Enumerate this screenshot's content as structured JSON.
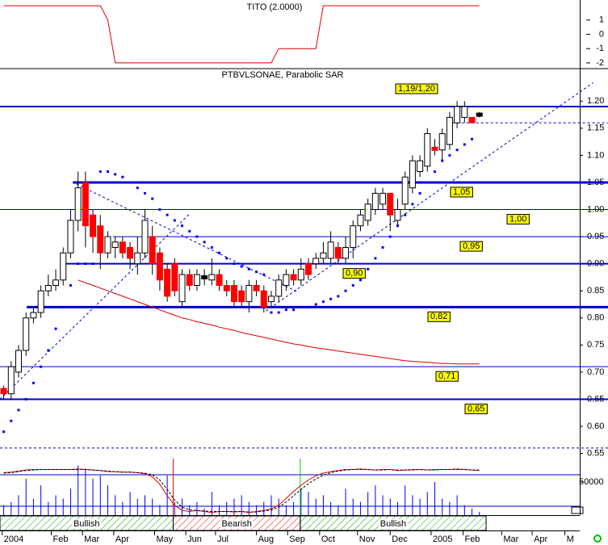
{
  "chart_data": [
    {
      "type": "line",
      "title": "TITO (2.0000)",
      "color": "#dd0000",
      "x": [
        0,
        1,
        2,
        3,
        4,
        5,
        6,
        7,
        8,
        9,
        10,
        11,
        12,
        13,
        14,
        15,
        16,
        17,
        18,
        19,
        20,
        21,
        22,
        23,
        24,
        25,
        26,
        27,
        28,
        29,
        30,
        31,
        32,
        33,
        34,
        35,
        36,
        37,
        38,
        39,
        40,
        41,
        42,
        43,
        44,
        45,
        46,
        47,
        48,
        49,
        50,
        51,
        52,
        53,
        54,
        55,
        56,
        57,
        58,
        59,
        60,
        61,
        62,
        63,
        64
      ],
      "values": [
        2,
        2,
        2,
        2,
        2,
        2,
        2,
        2,
        2,
        2,
        2,
        2,
        2,
        2,
        1,
        -2,
        -2,
        -2,
        -2,
        -2,
        -2,
        -2,
        -2,
        -2,
        -2,
        -2,
        -2,
        -2,
        -2,
        -2,
        -2,
        -2,
        -2,
        -2,
        -2,
        -2,
        -2,
        -1,
        -1,
        -1,
        -1,
        -1,
        -1,
        2,
        2,
        2,
        2,
        2,
        2,
        2,
        2,
        2,
        2,
        2,
        2,
        2,
        2,
        2,
        2,
        2,
        2,
        2,
        2,
        2,
        2
      ],
      "xlim": [
        -0.5,
        77.5
      ],
      "ylim": [
        -2.4,
        2.4
      ],
      "yticks": [
        1,
        0,
        -1,
        -2
      ]
    },
    {
      "type": "candlestick",
      "title": "PTBVLSONAE, Parabolic SAR",
      "up_color": "#ffffff",
      "down_color": "#ff0000",
      "doji_color": "#000000",
      "x": [
        0,
        1,
        2,
        3,
        4,
        5,
        6,
        7,
        8,
        9,
        10,
        11,
        12,
        13,
        14,
        15,
        16,
        17,
        18,
        19,
        20,
        21,
        22,
        23,
        24,
        25,
        26,
        27,
        28,
        29,
        30,
        31,
        32,
        33,
        34,
        35,
        36,
        37,
        38,
        39,
        40,
        41,
        42,
        43,
        44,
        45,
        46,
        47,
        48,
        49,
        50,
        51,
        52,
        53,
        54,
        55,
        56,
        57,
        58,
        59,
        60,
        61,
        62,
        63,
        64
      ],
      "open": [
        0.67,
        0.66,
        0.7,
        0.74,
        0.8,
        0.81,
        0.85,
        0.86,
        0.87,
        0.92,
        0.98,
        1.05,
        0.99,
        0.97,
        0.92,
        0.93,
        0.94,
        0.93,
        0.9,
        0.92,
        0.95,
        0.92,
        0.89,
        0.9,
        0.83,
        0.88,
        0.86,
        0.875,
        0.87,
        0.88,
        0.86,
        0.86,
        0.85,
        0.83,
        0.86,
        0.85,
        0.83,
        0.84,
        0.86,
        0.88,
        0.87,
        0.9,
        0.9,
        0.91,
        0.91,
        0.93,
        0.91,
        0.93,
        0.97,
        0.98,
        1.0,
        1.01,
        1.03,
        0.98,
        1.01,
        1.04,
        1.07,
        1.08,
        1.115,
        1.11,
        1.12,
        1.16,
        1.17,
        1.17,
        1.175
      ],
      "high": [
        0.675,
        0.72,
        0.75,
        0.81,
        0.82,
        0.86,
        0.88,
        0.89,
        0.93,
        1.0,
        1.07,
        1.07,
        1.0,
        0.99,
        0.96,
        0.95,
        0.95,
        0.94,
        0.95,
        1.0,
        0.97,
        0.93,
        0.9,
        0.91,
        0.89,
        0.89,
        0.89,
        0.89,
        0.91,
        0.89,
        0.87,
        0.87,
        0.86,
        0.87,
        0.87,
        0.86,
        0.85,
        0.88,
        0.89,
        0.89,
        0.91,
        0.91,
        0.92,
        0.94,
        0.96,
        0.94,
        0.95,
        0.98,
        1.0,
        1.02,
        1.04,
        1.04,
        1.03,
        1.02,
        1.07,
        1.1,
        1.1,
        1.15,
        1.13,
        1.15,
        1.18,
        1.2,
        1.2,
        1.17,
        1.18
      ],
      "low": [
        0.65,
        0.65,
        0.69,
        0.73,
        0.79,
        0.8,
        0.84,
        0.85,
        0.86,
        0.91,
        0.96,
        0.93,
        0.92,
        0.89,
        0.91,
        0.91,
        0.91,
        0.89,
        0.88,
        0.91,
        0.88,
        0.85,
        0.83,
        0.84,
        0.82,
        0.85,
        0.85,
        0.86,
        0.86,
        0.85,
        0.84,
        0.82,
        0.82,
        0.81,
        0.84,
        0.81,
        0.82,
        0.83,
        0.85,
        0.86,
        0.86,
        0.87,
        0.89,
        0.9,
        0.9,
        0.9,
        0.9,
        0.91,
        0.96,
        0.97,
        0.99,
        1.0,
        0.96,
        0.97,
        1.0,
        1.03,
        1.06,
        1.07,
        1.1,
        1.09,
        1.11,
        1.15,
        1.16,
        1.16,
        1.17
      ],
      "close": [
        0.66,
        0.71,
        0.74,
        0.8,
        0.81,
        0.85,
        0.86,
        0.87,
        0.92,
        0.98,
        1.04,
        0.97,
        0.95,
        0.92,
        0.95,
        0.94,
        0.92,
        0.91,
        0.92,
        0.98,
        0.9,
        0.87,
        0.84,
        0.85,
        0.88,
        0.86,
        0.88,
        0.875,
        0.88,
        0.86,
        0.85,
        0.83,
        0.83,
        0.86,
        0.85,
        0.82,
        0.84,
        0.87,
        0.88,
        0.87,
        0.89,
        0.88,
        0.91,
        0.92,
        0.94,
        0.91,
        0.93,
        0.97,
        0.99,
        1.01,
        1.03,
        1.03,
        0.99,
        1.0,
        1.06,
        1.09,
        1.09,
        1.14,
        1.11,
        1.14,
        1.17,
        1.19,
        1.19,
        1.16,
        1.175
      ],
      "overlays": [
        {
          "kind": "dots",
          "color": "#0000ff",
          "values": [
            0.59,
            0.61,
            0.63,
            0.65,
            0.68,
            0.71,
            0.74,
            0.78,
            0.82,
            0.86,
            0.9,
            0.9,
            0.9,
            1.07,
            1.07,
            1.065,
            1.06,
            1.05,
            1.04,
            1.03,
            1.02,
            1.0,
            0.99,
            0.98,
            0.97,
            0.96,
            0.95,
            0.94,
            0.93,
            0.92,
            0.91,
            0.9,
            0.895,
            0.89,
            0.885,
            0.88,
            0.81,
            0.81,
            0.815,
            0.815,
            0.82,
            0.82,
            0.825,
            0.83,
            0.835,
            0.84,
            0.85,
            0.86,
            0.87,
            0.89,
            0.91,
            0.93,
            0.95,
            0.97,
            0.99,
            1.01,
            1.03,
            1.05,
            1.07,
            1.09,
            1.1,
            1.11,
            1.12,
            1.13,
            null
          ]
        },
        {
          "kind": "line",
          "color": "#dd0000",
          "values": [
            null,
            null,
            null,
            null,
            null,
            null,
            null,
            null,
            null,
            null,
            0.87,
            0.865,
            0.86,
            0.855,
            0.85,
            0.845,
            0.84,
            0.835,
            0.83,
            0.825,
            0.82,
            0.815,
            0.81,
            0.805,
            0.8,
            0.797,
            0.793,
            0.79,
            0.787,
            0.783,
            0.78,
            0.777,
            0.773,
            0.77,
            0.767,
            0.764,
            0.761,
            0.758,
            0.755,
            0.752,
            0.75,
            0.747,
            0.745,
            0.743,
            0.741,
            0.739,
            0.737,
            0.735,
            0.733,
            0.731,
            0.729,
            0.727,
            0.725,
            0.723,
            0.721,
            0.72,
            0.719,
            0.718,
            0.717,
            0.716,
            0.716,
            0.715,
            0.715,
            0.715,
            0.715
          ]
        }
      ],
      "levels": [
        {
          "value": 1.19,
          "label": "1,19/1,20",
          "from": -0.5,
          "style": "thick"
        },
        {
          "value": 1.16,
          "from": 60.3,
          "style": "dashed"
        },
        {
          "value": 1.05,
          "label": "1,05",
          "from": 9.3,
          "style": "heavy"
        },
        {
          "value": 1.0,
          "label": "1,00",
          "from": -0.5,
          "style": "thin"
        },
        {
          "value": 0.95,
          "label": "0,95",
          "from": 14.7,
          "style": "thin"
        },
        {
          "value": 0.9,
          "label": "0,90",
          "from": 8.4,
          "style": "thick"
        },
        {
          "value": 0.82,
          "label": "0,82",
          "from": 3.1,
          "style": "heavy"
        },
        {
          "value": 0.71,
          "label": "0,71",
          "from": -0.5,
          "style": "thin"
        },
        {
          "value": 0.65,
          "label": "0,65",
          "from": -0.5,
          "style": "thick"
        },
        {
          "value": 0.56,
          "from": -0.5,
          "style": "dashed"
        }
      ],
      "level_color": "#0000cc",
      "label_color": "#ffff00",
      "trendlines": [
        {
          "x": [
            -0.5,
            25
          ],
          "y": [
            0.65,
            0.992
          ]
        },
        {
          "x": [
            9.8,
            39.7
          ],
          "y": [
            1.047,
            0.847
          ]
        },
        {
          "x": [
            35.3,
            79.3
          ],
          "y": [
            0.813,
            1.234
          ]
        }
      ],
      "xlim": [
        -0.5,
        77.5
      ],
      "ylim": [
        0.53,
        1.26
      ],
      "yticks": [
        {
          "value": 1.2,
          "label": "1.20"
        },
        {
          "value": 1.15,
          "label": "1.15"
        },
        {
          "value": 1.1,
          "label": "1.10"
        },
        {
          "value": 1.05,
          "label": "1.05"
        },
        {
          "value": 1.0,
          "label": "1.00"
        },
        {
          "value": 0.95,
          "label": "0.95"
        },
        {
          "value": 0.9,
          "label": "0.90"
        },
        {
          "value": 0.85,
          "label": "0.85"
        },
        {
          "value": 0.8,
          "label": "0.80"
        },
        {
          "value": 0.75,
          "label": "0.75"
        },
        {
          "value": 0.7,
          "label": "0.70"
        },
        {
          "value": 0.65,
          "label": "0.65"
        },
        {
          "value": 0.6,
          "label": "0.60"
        },
        {
          "value": 0.55,
          "label": "0.55"
        }
      ]
    },
    {
      "type": "volume",
      "color": "#0000ff",
      "x": [
        0,
        1,
        2,
        3,
        4,
        5,
        6,
        7,
        8,
        9,
        10,
        11,
        12,
        13,
        14,
        15,
        16,
        17,
        18,
        19,
        20,
        21,
        22,
        23,
        24,
        25,
        26,
        27,
        28,
        29,
        30,
        31,
        32,
        33,
        34,
        35,
        36,
        37,
        38,
        39,
        40,
        41,
        42,
        43,
        44,
        45,
        46,
        47,
        48,
        49,
        50,
        51,
        52,
        53,
        54,
        55,
        56,
        57,
        58,
        59,
        60,
        61,
        62,
        63,
        64
      ],
      "values": [
        15000,
        20000,
        30000,
        55000,
        25000,
        45000,
        20000,
        30000,
        25000,
        40000,
        75000,
        70000,
        55000,
        60000,
        45000,
        30000,
        20000,
        35000,
        25000,
        30000,
        25000,
        15000,
        60000,
        20000,
        25000,
        15000,
        20000,
        10000,
        35000,
        15000,
        20000,
        25000,
        30000,
        20000,
        15000,
        20000,
        30000,
        25000,
        15000,
        20000,
        40000,
        35000,
        25000,
        30000,
        20000,
        15000,
        40000,
        25000,
        20000,
        35000,
        45000,
        30000,
        25000,
        20000,
        45000,
        30000,
        25000,
        35000,
        50000,
        25000,
        20000,
        30000,
        15000,
        10000,
        5000
      ],
      "ylim": [
        0,
        100000
      ],
      "yticks": [
        50000
      ],
      "y2lim": [
        0,
        100
      ],
      "lines": [
        {
          "color": "#dd0000",
          "dashed": false,
          "values": [
            84,
            85,
            87,
            89,
            90,
            90,
            90,
            90,
            90,
            90,
            91,
            90,
            89,
            88,
            86,
            86,
            85,
            85,
            84,
            82,
            76,
            62,
            40,
            22,
            12,
            10,
            12,
            10,
            8,
            10,
            10,
            9,
            10,
            8,
            10,
            12,
            15,
            22,
            35,
            48,
            60,
            70,
            78,
            83,
            86,
            88,
            90,
            90,
            91,
            90,
            89,
            90,
            90,
            88,
            89,
            90,
            90,
            89,
            90,
            90,
            90,
            91,
            90,
            89,
            88
          ]
        },
        {
          "color": "#000000",
          "dashed": true,
          "values": [
            83,
            84,
            86,
            88,
            89,
            90,
            90,
            90,
            90,
            90,
            90,
            90,
            89,
            88,
            87,
            86,
            85,
            85,
            84,
            83,
            80,
            70,
            52,
            32,
            18,
            13,
            12,
            11,
            10,
            10,
            10,
            10,
            10,
            9,
            9,
            11,
            13,
            18,
            28,
            40,
            52,
            63,
            72,
            79,
            84,
            87,
            89,
            90,
            90,
            90,
            89,
            89,
            90,
            89,
            89,
            89,
            90,
            89,
            89,
            90,
            90,
            90,
            90,
            89,
            89
          ]
        }
      ],
      "y2levels": [
        80,
        20
      ],
      "signals": [
        {
          "x": 22.8,
          "color": "#ff0000"
        },
        {
          "x": 39.9,
          "color": "#00cc00"
        }
      ],
      "regimes": [
        {
          "label": "Bullish",
          "start": -0.5,
          "end": 22.8,
          "color": "#00aa00"
        },
        {
          "label": "Bearish",
          "start": 22.8,
          "end": 39.9,
          "color": "#ee0000"
        },
        {
          "label": "Bullish",
          "start": 39.9,
          "end": 64.9,
          "color": "#00aa00"
        }
      ],
      "xlim": [
        -0.5,
        77.5
      ],
      "xticks": [
        {
          "value": -0.2,
          "label": "2004"
        },
        {
          "value": 6.4,
          "label": "Feb"
        },
        {
          "value": 10.6,
          "label": "Mar"
        },
        {
          "value": 14.8,
          "label": "Apr"
        },
        {
          "value": 20.3,
          "label": "May"
        },
        {
          "value": 24.5,
          "label": "Jun"
        },
        {
          "value": 28.5,
          "label": "Jul"
        },
        {
          "value": 34,
          "label": "Aug"
        },
        {
          "value": 38.2,
          "label": "Sep"
        },
        {
          "value": 42.5,
          "label": "Oct"
        },
        {
          "value": 47.6,
          "label": "Nov"
        },
        {
          "value": 52,
          "label": "Dec"
        },
        {
          "value": 57.5,
          "label": "2005"
        },
        {
          "value": 61.8,
          "label": "Feb"
        },
        {
          "value": 67,
          "label": "Mar"
        },
        {
          "value": 71.1,
          "label": "Apr"
        },
        {
          "value": 75.5,
          "label": "M"
        }
      ]
    }
  ]
}
